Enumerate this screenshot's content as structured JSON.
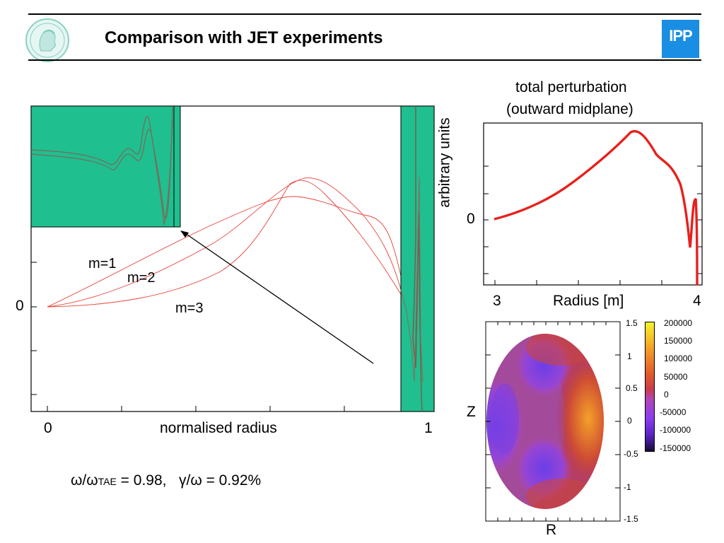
{
  "header": {
    "title": "Comparison with JET experiments",
    "logo_text": "IPP"
  },
  "main_plot": {
    "xlabel": "normalised radius",
    "x_tick_labels": [
      "0",
      "1"
    ],
    "y_tick_label": "0",
    "curve_labels": [
      "m=1",
      "m=2",
      "m=3"
    ]
  },
  "formula": {
    "omega_ratio_prefix": "ω/ω",
    "omega_ratio_sub": "TAE",
    "omega_ratio_value": " = 0.98,",
    "growth_rate": "γ/ω = 0.92%"
  },
  "perturbation_plot": {
    "title_line1": "total perturbation",
    "title_line2": "(outward midplane)",
    "ylabel": "arbitrary units",
    "xlabel": "Radius [m]",
    "x_tick_labels": [
      "3",
      "4"
    ],
    "y_tick_label": "0"
  },
  "contour_plot": {
    "xlabel": "R",
    "ylabel": "Z",
    "z_tick_labels": [
      "1.5",
      "1",
      "0.5",
      "0",
      "-0.5",
      "-1",
      "-1.5"
    ],
    "colorbar_labels": [
      "200000",
      "150000",
      "100000",
      "50000",
      "0",
      "-50000",
      "-100000",
      "-150000"
    ]
  },
  "colors": {
    "accent_green": "#1fbf8f",
    "curve_red": "#e8413a",
    "ipp_blue": "#1a8ee3"
  },
  "chart_data": [
    {
      "type": "line",
      "xlabel": "normalised radius",
      "xlim": [
        0,
        1
      ],
      "series": [
        {
          "name": "m=1",
          "x": [
            0,
            0.1,
            0.2,
            0.3,
            0.4,
            0.5,
            0.6,
            0.65,
            0.7,
            0.8,
            0.9,
            0.95
          ],
          "y": [
            0,
            0.28,
            0.58,
            0.88,
            1.12,
            1.32,
            1.45,
            1.43,
            1.28,
            1.0,
            0.85,
            0.3
          ]
        },
        {
          "name": "m=2",
          "x": [
            0,
            0.1,
            0.2,
            0.3,
            0.4,
            0.5,
            0.6,
            0.65,
            0.7,
            0.8,
            0.9,
            0.95
          ],
          "y": [
            0,
            0.07,
            0.22,
            0.45,
            0.75,
            1.08,
            1.42,
            1.56,
            1.52,
            1.12,
            0.6,
            0.1
          ]
        },
        {
          "name": "m=3",
          "x": [
            0,
            0.1,
            0.2,
            0.3,
            0.4,
            0.5,
            0.6,
            0.65,
            0.7,
            0.8,
            0.9,
            0.95
          ],
          "y": [
            0,
            0.02,
            0.07,
            0.18,
            0.38,
            0.7,
            1.2,
            1.5,
            1.48,
            0.98,
            0.4,
            -0.1
          ]
        }
      ]
    },
    {
      "type": "line",
      "title": "total perturbation (outward midplane)",
      "xlabel": "Radius [m]",
      "ylabel": "arbitrary units",
      "xlim": [
        3,
        4
      ],
      "series": [
        {
          "x": [
            3.0,
            3.1,
            3.2,
            3.3,
            3.4,
            3.5,
            3.55,
            3.6,
            3.65,
            3.7,
            3.8,
            3.85,
            3.9,
            3.92,
            3.95,
            3.97,
            3.98,
            3.99
          ],
          "y": [
            0.0,
            0.1,
            0.24,
            0.42,
            0.67,
            0.98,
            1.15,
            1.32,
            1.44,
            1.38,
            1.0,
            0.85,
            0.45,
            0.0,
            -0.4,
            0.35,
            -0.3,
            -1.0
          ]
        }
      ]
    }
  ]
}
